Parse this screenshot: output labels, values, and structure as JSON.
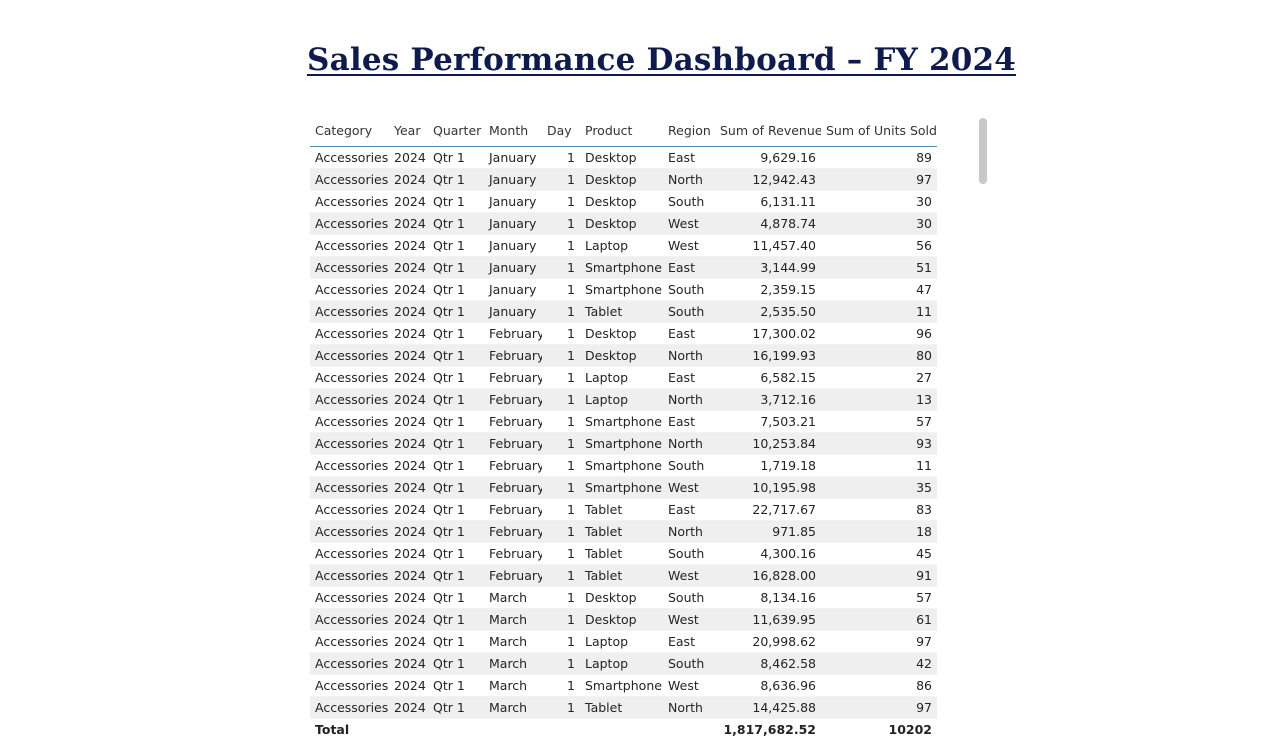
{
  "title": "Sales Performance Dashboard – FY 2024",
  "table": {
    "columns": [
      "Category",
      "Year",
      "Quarter",
      "Month",
      "Day",
      "Product",
      "Region",
      "Sum of Revenue",
      "Sum of Units Sold"
    ],
    "rows": [
      [
        "Accessories",
        "2024",
        "Qtr 1",
        "January",
        "1",
        "Desktop",
        "East",
        "9,629.16",
        "89"
      ],
      [
        "Accessories",
        "2024",
        "Qtr 1",
        "January",
        "1",
        "Desktop",
        "North",
        "12,942.43",
        "97"
      ],
      [
        "Accessories",
        "2024",
        "Qtr 1",
        "January",
        "1",
        "Desktop",
        "South",
        "6,131.11",
        "30"
      ],
      [
        "Accessories",
        "2024",
        "Qtr 1",
        "January",
        "1",
        "Desktop",
        "West",
        "4,878.74",
        "30"
      ],
      [
        "Accessories",
        "2024",
        "Qtr 1",
        "January",
        "1",
        "Laptop",
        "West",
        "11,457.40",
        "56"
      ],
      [
        "Accessories",
        "2024",
        "Qtr 1",
        "January",
        "1",
        "Smartphone",
        "East",
        "3,144.99",
        "51"
      ],
      [
        "Accessories",
        "2024",
        "Qtr 1",
        "January",
        "1",
        "Smartphone",
        "South",
        "2,359.15",
        "47"
      ],
      [
        "Accessories",
        "2024",
        "Qtr 1",
        "January",
        "1",
        "Tablet",
        "South",
        "2,535.50",
        "11"
      ],
      [
        "Accessories",
        "2024",
        "Qtr 1",
        "February",
        "1",
        "Desktop",
        "East",
        "17,300.02",
        "96"
      ],
      [
        "Accessories",
        "2024",
        "Qtr 1",
        "February",
        "1",
        "Desktop",
        "North",
        "16,199.93",
        "80"
      ],
      [
        "Accessories",
        "2024",
        "Qtr 1",
        "February",
        "1",
        "Laptop",
        "East",
        "6,582.15",
        "27"
      ],
      [
        "Accessories",
        "2024",
        "Qtr 1",
        "February",
        "1",
        "Laptop",
        "North",
        "3,712.16",
        "13"
      ],
      [
        "Accessories",
        "2024",
        "Qtr 1",
        "February",
        "1",
        "Smartphone",
        "East",
        "7,503.21",
        "57"
      ],
      [
        "Accessories",
        "2024",
        "Qtr 1",
        "February",
        "1",
        "Smartphone",
        "North",
        "10,253.84",
        "93"
      ],
      [
        "Accessories",
        "2024",
        "Qtr 1",
        "February",
        "1",
        "Smartphone",
        "South",
        "1,719.18",
        "11"
      ],
      [
        "Accessories",
        "2024",
        "Qtr 1",
        "February",
        "1",
        "Smartphone",
        "West",
        "10,195.98",
        "35"
      ],
      [
        "Accessories",
        "2024",
        "Qtr 1",
        "February",
        "1",
        "Tablet",
        "East",
        "22,717.67",
        "83"
      ],
      [
        "Accessories",
        "2024",
        "Qtr 1",
        "February",
        "1",
        "Tablet",
        "North",
        "971.85",
        "18"
      ],
      [
        "Accessories",
        "2024",
        "Qtr 1",
        "February",
        "1",
        "Tablet",
        "South",
        "4,300.16",
        "45"
      ],
      [
        "Accessories",
        "2024",
        "Qtr 1",
        "February",
        "1",
        "Tablet",
        "West",
        "16,828.00",
        "91"
      ],
      [
        "Accessories",
        "2024",
        "Qtr 1",
        "March",
        "1",
        "Desktop",
        "South",
        "8,134.16",
        "57"
      ],
      [
        "Accessories",
        "2024",
        "Qtr 1",
        "March",
        "1",
        "Desktop",
        "West",
        "11,639.95",
        "61"
      ],
      [
        "Accessories",
        "2024",
        "Qtr 1",
        "March",
        "1",
        "Laptop",
        "East",
        "20,998.62",
        "97"
      ],
      [
        "Accessories",
        "2024",
        "Qtr 1",
        "March",
        "1",
        "Laptop",
        "South",
        "8,462.58",
        "42"
      ],
      [
        "Accessories",
        "2024",
        "Qtr 1",
        "March",
        "1",
        "Smartphone",
        "West",
        "8,636.96",
        "86"
      ],
      [
        "Accessories",
        "2024",
        "Qtr 1",
        "March",
        "1",
        "Tablet",
        "North",
        "14,425.88",
        "97"
      ]
    ],
    "total": {
      "label": "Total",
      "revenue": "1,817,682.52",
      "units": "10202"
    }
  },
  "colors": {
    "title": "#0f1b4c",
    "header_border": "#4a8fc3",
    "row_stripe": "#efefef",
    "scrollbar": "#c8c8c8"
  }
}
